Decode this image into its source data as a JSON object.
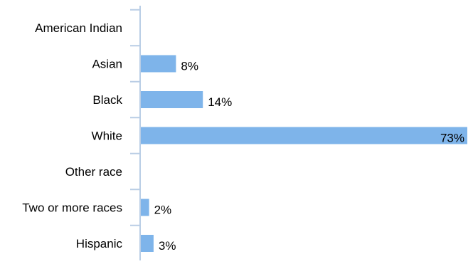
{
  "chart_data": {
    "type": "bar",
    "orientation": "horizontal",
    "categories": [
      "American Indian",
      "Asian",
      "Black",
      "White",
      "Other race",
      "Two or more races",
      "Hispanic"
    ],
    "values": [
      0,
      8,
      14,
      73,
      0,
      2,
      3
    ],
    "value_labels": [
      "",
      "8%",
      "14%",
      "73%",
      "",
      "2%",
      "3%"
    ],
    "title": "",
    "xlabel": "",
    "ylabel": "",
    "xlim": [
      0,
      73
    ],
    "grid": false,
    "legend": "none",
    "bar_color": "#7EB4EA",
    "axis_color": "#B9CDE5",
    "text_color": "#000000"
  }
}
